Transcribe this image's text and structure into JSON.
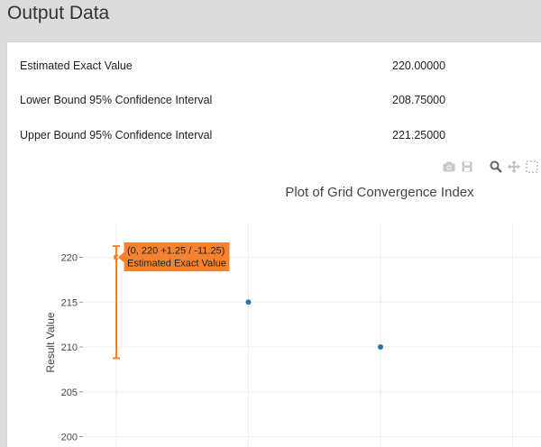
{
  "page": {
    "title": "Output Data"
  },
  "output": {
    "rows": [
      {
        "label": "Estimated Exact Value",
        "value": "220.00000"
      },
      {
        "label": "Lower Bound 95% Confidence Interval",
        "value": "208.75000"
      },
      {
        "label": "Upper Bound 95% Confidence Interval",
        "value": "221.25000"
      }
    ]
  },
  "modebar": {
    "icons": [
      "camera-icon",
      "save-icon",
      "zoom-icon",
      "pan-icon",
      "box-select-icon"
    ]
  },
  "colors": {
    "accent_orange": "#f58231",
    "point_blue": "#1f77b4",
    "grid": "#eeeeee"
  },
  "chart_data": {
    "type": "scatter",
    "title": "Plot of Grid Convergence Index",
    "ylabel": "Result Value",
    "xlabel": "",
    "yticks": [
      "220",
      "215",
      "210",
      "205",
      "200"
    ],
    "ytick_values": [
      220,
      215,
      210,
      205,
      200
    ],
    "ylim": [
      199,
      222.5
    ],
    "xlim": [
      -0.6,
      3.2
    ],
    "series": [
      {
        "points": [
          {
            "x": 0,
            "y": 220,
            "error_plus": 1.25,
            "error_minus": 11.25
          },
          {
            "x": 1,
            "y": 215
          },
          {
            "x": 2,
            "y": 210
          }
        ]
      }
    ],
    "tooltip": {
      "line1": "(0, 220 +1.25 / -11.25)",
      "line2": "Estimated Exact Value"
    }
  }
}
